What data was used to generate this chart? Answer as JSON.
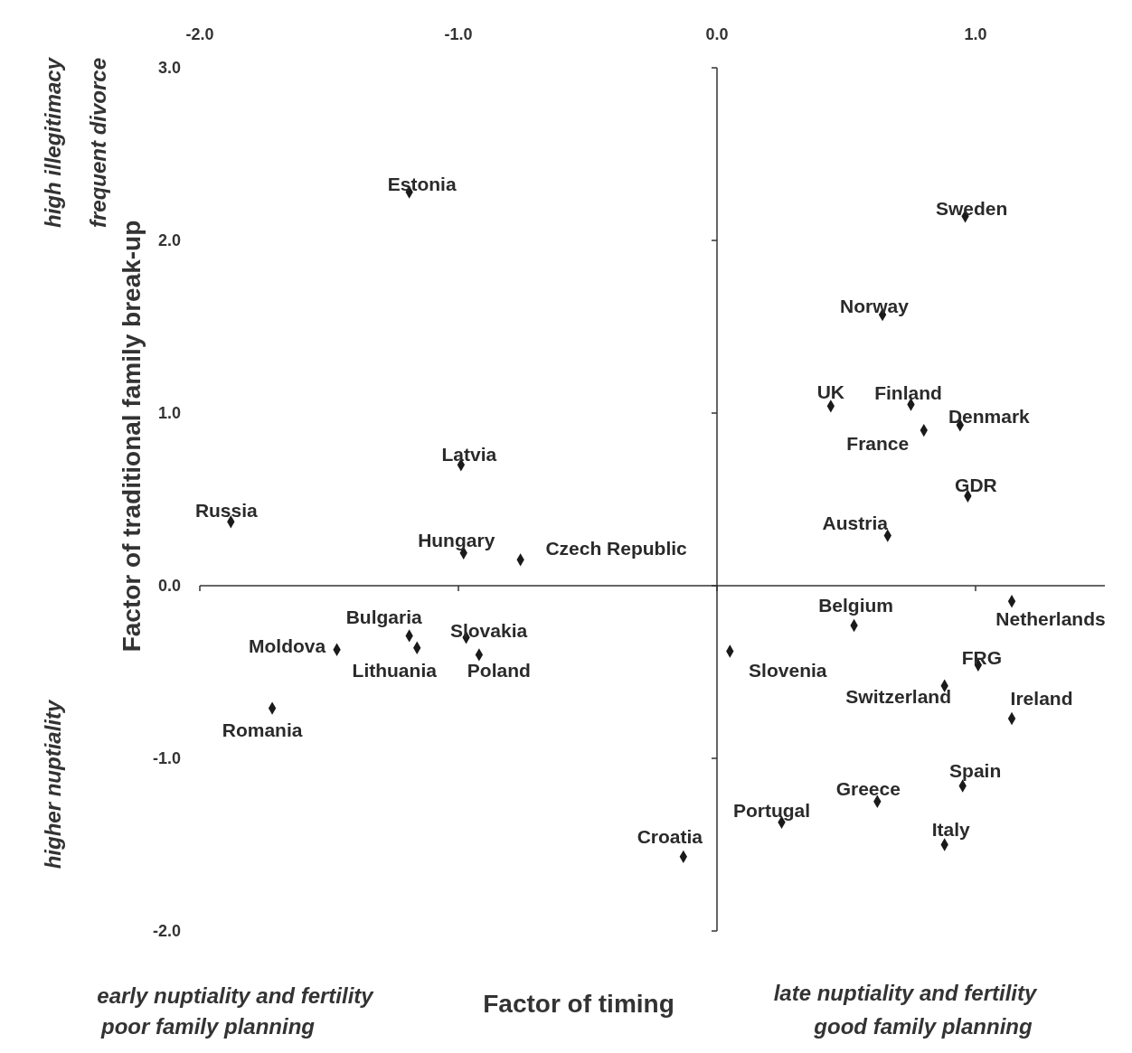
{
  "chart_data": {
    "type": "scatter",
    "xlabel": "Factor of timing",
    "ylabel": "Factor of traditional family break-up",
    "xlim": [
      -2.0,
      1.5
    ],
    "ylim": [
      -2.0,
      3.0
    ],
    "xticks": [
      {
        "value": -2,
        "label": "-2.0"
      },
      {
        "value": -1,
        "label": "-1.0"
      },
      {
        "value": 0,
        "label": "0.0"
      },
      {
        "value": 1,
        "label": "1.0"
      }
    ],
    "yticks": [
      {
        "value": 3,
        "label": "3.0"
      },
      {
        "value": 2,
        "label": "2.0"
      },
      {
        "value": 1,
        "label": "1.0"
      },
      {
        "value": 0,
        "label": "0.0"
      },
      {
        "value": -1,
        "label": "-1.0"
      },
      {
        "value": -2,
        "label": "-2.0"
      }
    ],
    "marker": "diamond",
    "annotations": [
      "high illegitimacy",
      "frequent divorce",
      "higher nuptiality",
      "early nuptiality and fertility",
      "poor family planning",
      "late nuptiality and fertility",
      "good family planning"
    ],
    "series": [
      {
        "name": "Estonia",
        "color": "#1a1a1a",
        "x": [
          -1.19
        ],
        "values": [
          2.28
        ]
      },
      {
        "name": "Sweden",
        "color": "#1a1a1a",
        "x": [
          0.96
        ],
        "values": [
          2.14
        ]
      },
      {
        "name": "Norway",
        "color": "#1a1a1a",
        "x": [
          0.64
        ],
        "values": [
          1.57
        ]
      },
      {
        "name": "UK",
        "color": "#1a1a1a",
        "x": [
          0.44
        ],
        "values": [
          1.04
        ]
      },
      {
        "name": "Finland",
        "color": "#1a1a1a",
        "x": [
          0.75
        ],
        "values": [
          1.05
        ]
      },
      {
        "name": "Denmark",
        "color": "#1a1a1a",
        "x": [
          0.94
        ],
        "values": [
          0.93
        ]
      },
      {
        "name": "France",
        "color": "#1a1a1a",
        "x": [
          0.8
        ],
        "values": [
          0.9
        ]
      },
      {
        "name": "GDR",
        "color": "#1a1a1a",
        "x": [
          0.97
        ],
        "values": [
          0.52
        ]
      },
      {
        "name": "Austria",
        "color": "#1a1a1a",
        "x": [
          0.66
        ],
        "values": [
          0.29
        ]
      },
      {
        "name": "Latvia",
        "color": "#1a1a1a",
        "x": [
          -0.99
        ],
        "values": [
          0.7
        ]
      },
      {
        "name": "Russia",
        "color": "#1a1a1a",
        "x": [
          -1.88
        ],
        "values": [
          0.37
        ]
      },
      {
        "name": "Hungary",
        "color": "#1a1a1a",
        "x": [
          -0.98
        ],
        "values": [
          0.19
        ]
      },
      {
        "name": "Czech Republic",
        "color": "#1a1a1a",
        "x": [
          -0.76
        ],
        "values": [
          0.15
        ]
      },
      {
        "name": "Bulgaria",
        "color": "#1a1a1a",
        "x": [
          -1.19
        ],
        "values": [
          -0.29
        ]
      },
      {
        "name": "Moldova",
        "color": "#1a1a1a",
        "x": [
          -1.47
        ],
        "values": [
          -0.37
        ]
      },
      {
        "name": "Lithuania",
        "color": "#1a1a1a",
        "x": [
          -1.16
        ],
        "values": [
          -0.36
        ]
      },
      {
        "name": "Slovakia",
        "color": "#1a1a1a",
        "x": [
          -0.97
        ],
        "values": [
          -0.3
        ]
      },
      {
        "name": "Poland",
        "color": "#1a1a1a",
        "x": [
          -0.92
        ],
        "values": [
          -0.4
        ]
      },
      {
        "name": "Romania",
        "color": "#1a1a1a",
        "x": [
          -1.72
        ],
        "values": [
          -0.71
        ]
      },
      {
        "name": "Slovenia",
        "color": "#1a1a1a",
        "x": [
          0.05
        ],
        "values": [
          -0.38
        ]
      },
      {
        "name": "Belgium",
        "color": "#1a1a1a",
        "x": [
          0.53
        ],
        "values": [
          -0.23
        ]
      },
      {
        "name": "Netherlands",
        "color": "#1a1a1a",
        "x": [
          1.14
        ],
        "values": [
          -0.09
        ]
      },
      {
        "name": "FRG",
        "color": "#1a1a1a",
        "x": [
          1.01
        ],
        "values": [
          -0.46
        ]
      },
      {
        "name": "Switzerland",
        "color": "#1a1a1a",
        "x": [
          0.88
        ],
        "values": [
          -0.58
        ]
      },
      {
        "name": "Ireland",
        "color": "#1a1a1a",
        "x": [
          1.14
        ],
        "values": [
          -0.77
        ]
      },
      {
        "name": "Spain",
        "color": "#1a1a1a",
        "x": [
          0.95
        ],
        "values": [
          -1.16
        ]
      },
      {
        "name": "Greece",
        "color": "#1a1a1a",
        "x": [
          0.62
        ],
        "values": [
          -1.25
        ]
      },
      {
        "name": "Italy",
        "color": "#1a1a1a",
        "x": [
          0.88
        ],
        "values": [
          -1.5
        ]
      },
      {
        "name": "Portugal",
        "color": "#1a1a1a",
        "x": [
          0.25
        ],
        "values": [
          -1.37
        ]
      },
      {
        "name": "Croatia",
        "color": "#1a1a1a",
        "x": [
          -0.13
        ],
        "values": [
          -1.57
        ]
      }
    ]
  }
}
